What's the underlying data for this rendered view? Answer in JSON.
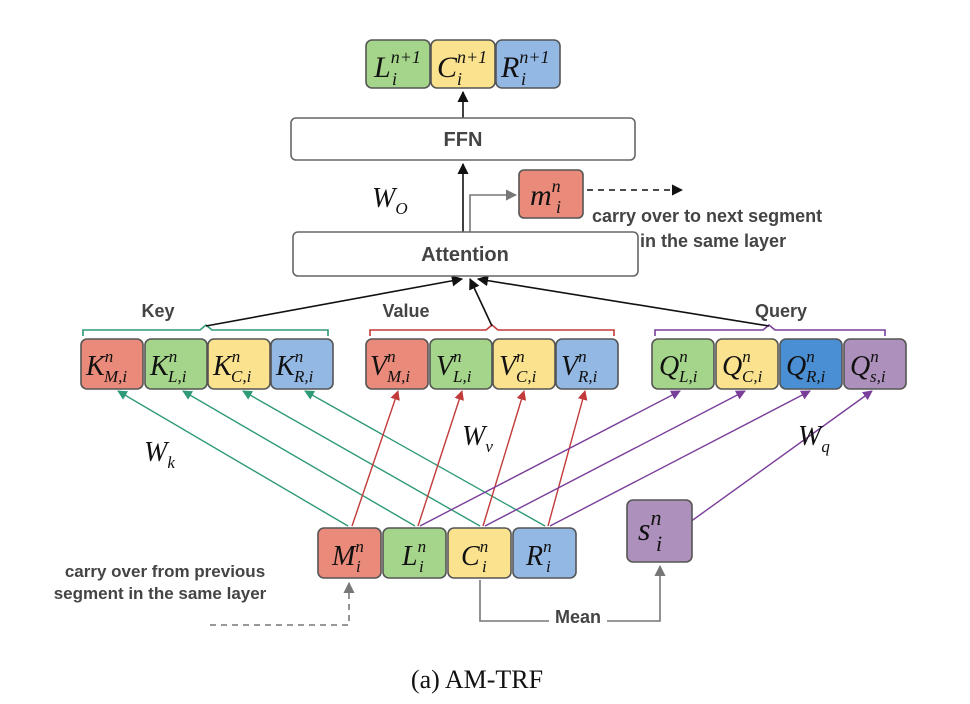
{
  "colors": {
    "green": "#a5d58a",
    "yellow": "#fbe28f",
    "blue": "#93b8e3",
    "red": "#ea8a7a",
    "dark_blue": "#4a8fd3",
    "purple": "#ad90bb",
    "key_arrow": "#2f9a78",
    "value_arrow": "#c23a3a",
    "query_arrow": "#7a3e9a"
  },
  "blocks": {
    "ffn": "FFN",
    "attention": "Attention"
  },
  "weights": {
    "wo": {
      "base": "W",
      "sub": "O"
    },
    "wk": {
      "base": "W",
      "sub": "k"
    },
    "wv": {
      "base": "W",
      "sub": "v"
    },
    "wq": {
      "base": "W",
      "sub": "q"
    }
  },
  "groups": {
    "key": "Key",
    "value": "Value",
    "query": "Query"
  },
  "output_cells": [
    {
      "base": "L",
      "sup": "n+1",
      "sub": "i",
      "color": "#a5d58a"
    },
    {
      "base": "C",
      "sup": "n+1",
      "sub": "i",
      "color": "#fbe28f"
    },
    {
      "base": "R",
      "sup": "n+1",
      "sub": "i",
      "color": "#93b8e3"
    }
  ],
  "memory_out": {
    "base": "m",
    "sup": "n",
    "sub": "i",
    "color": "#ea8a7a"
  },
  "carry_next": {
    "line1": "carry over to next segment",
    "line2": "in the same layer"
  },
  "key_cells": [
    {
      "base": "K",
      "sup": "n",
      "sub": "M,i",
      "color": "#ea8a7a"
    },
    {
      "base": "K",
      "sup": "n",
      "sub": "L,i",
      "color": "#a5d58a"
    },
    {
      "base": "K",
      "sup": "n",
      "sub": "C,i",
      "color": "#fbe28f"
    },
    {
      "base": "K",
      "sup": "n",
      "sub": "R,i",
      "color": "#93b8e3"
    }
  ],
  "value_cells": [
    {
      "base": "V",
      "sup": "n",
      "sub": "M,i",
      "color": "#ea8a7a"
    },
    {
      "base": "V",
      "sup": "n",
      "sub": "L,i",
      "color": "#a5d58a"
    },
    {
      "base": "V",
      "sup": "n",
      "sub": "C,i",
      "color": "#fbe28f"
    },
    {
      "base": "V",
      "sup": "n",
      "sub": "R,i",
      "color": "#93b8e3"
    }
  ],
  "query_cells": [
    {
      "base": "Q",
      "sup": "n",
      "sub": "L,i",
      "color": "#a5d58a"
    },
    {
      "base": "Q",
      "sup": "n",
      "sub": "C,i",
      "color": "#fbe28f"
    },
    {
      "base": "Q",
      "sup": "n",
      "sub": "R,i",
      "color": "#4a8fd3"
    },
    {
      "base": "Q",
      "sup": "n",
      "sub": "s,i",
      "color": "#ad90bb"
    }
  ],
  "input_cells": [
    {
      "base": "M",
      "sup": "n",
      "sub": "i",
      "color": "#ea8a7a"
    },
    {
      "base": "L",
      "sup": "n",
      "sub": "i",
      "color": "#a5d58a"
    },
    {
      "base": "C",
      "sup": "n",
      "sub": "i",
      "color": "#fbe28f"
    },
    {
      "base": "R",
      "sup": "n",
      "sub": "i",
      "color": "#93b8e3"
    }
  ],
  "summary_cell": {
    "base": "s",
    "sup": "n",
    "sub": "i",
    "color": "#ad90bb"
  },
  "mean_label": "Mean",
  "carry_prev": {
    "line1": "carry over from previous",
    "line2": "segment in the same layer"
  },
  "caption": "(a) AM-TRF"
}
